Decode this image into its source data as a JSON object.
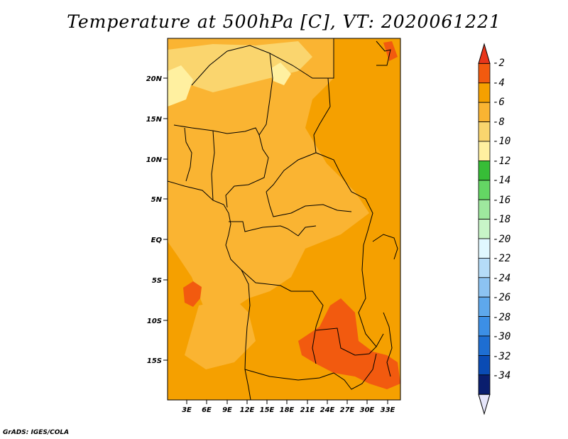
{
  "title": "Temperature at 500hPa [C], VT: 2020061221",
  "credit": "GrADS: IGES/COLA",
  "map": {
    "lat_labels": [
      "20N",
      "15N",
      "10N",
      "5N",
      "EQ",
      "5S",
      "10S",
      "15S"
    ],
    "lon_labels": [
      "3E",
      "6E",
      "9E",
      "12E",
      "15E",
      "18E",
      "21E",
      "24E",
      "27E",
      "30E",
      "33E"
    ]
  },
  "colorbar": {
    "labels": [
      "-2",
      "-4",
      "-6",
      "-8",
      "-10",
      "-12",
      "-14",
      "-16",
      "-18",
      "-20",
      "-22",
      "-24",
      "-26",
      "-28",
      "-30",
      "-32",
      "-34"
    ],
    "colors": [
      "#e8361b",
      "#f25a0f",
      "#f5a000",
      "#fab432",
      "#fad56e",
      "#fff0a0",
      "#37bd37",
      "#64d664",
      "#9ee89e",
      "#c8f5c8",
      "#e0f8ff",
      "#b5dcf8",
      "#8cc3f2",
      "#5ea8ec",
      "#3c8fe6",
      "#1e6ed2",
      "#0a4bb4",
      "#0a1e6e",
      "#e6e6fa"
    ]
  }
}
